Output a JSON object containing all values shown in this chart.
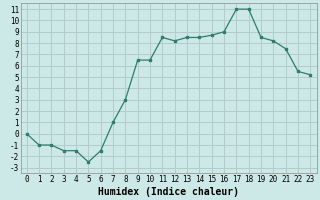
{
  "x": [
    0,
    1,
    2,
    3,
    4,
    5,
    6,
    7,
    8,
    9,
    10,
    11,
    12,
    13,
    14,
    15,
    16,
    17,
    18,
    19,
    20,
    21,
    22,
    23
  ],
  "y": [
    0,
    -1,
    -1,
    -1.5,
    -1.5,
    -2.5,
    -1.5,
    1.0,
    3.0,
    6.5,
    6.5,
    8.5,
    8.2,
    8.5,
    8.5,
    8.7,
    9.0,
    11.0,
    11.0,
    8.5,
    8.2,
    7.5,
    5.5,
    5.2
  ],
  "line_color": "#2e7d6e",
  "marker": "s",
  "markersize": 2,
  "linewidth": 0.9,
  "bg_color": "#cce9e7",
  "grid_color": "#aad4d1",
  "grid_color_major": "#c4a0a0",
  "xlabel": "Humidex (Indice chaleur)",
  "xlim": [
    -0.5,
    23.5
  ],
  "ylim": [
    -3.5,
    11.5
  ],
  "yticks": [
    -3,
    -2,
    -1,
    0,
    1,
    2,
    3,
    4,
    5,
    6,
    7,
    8,
    9,
    10,
    11
  ],
  "xticks": [
    0,
    1,
    2,
    3,
    4,
    5,
    6,
    7,
    8,
    9,
    10,
    11,
    12,
    13,
    14,
    15,
    16,
    17,
    18,
    19,
    20,
    21,
    22,
    23
  ],
  "tick_fontsize": 5.5,
  "label_fontsize": 7
}
